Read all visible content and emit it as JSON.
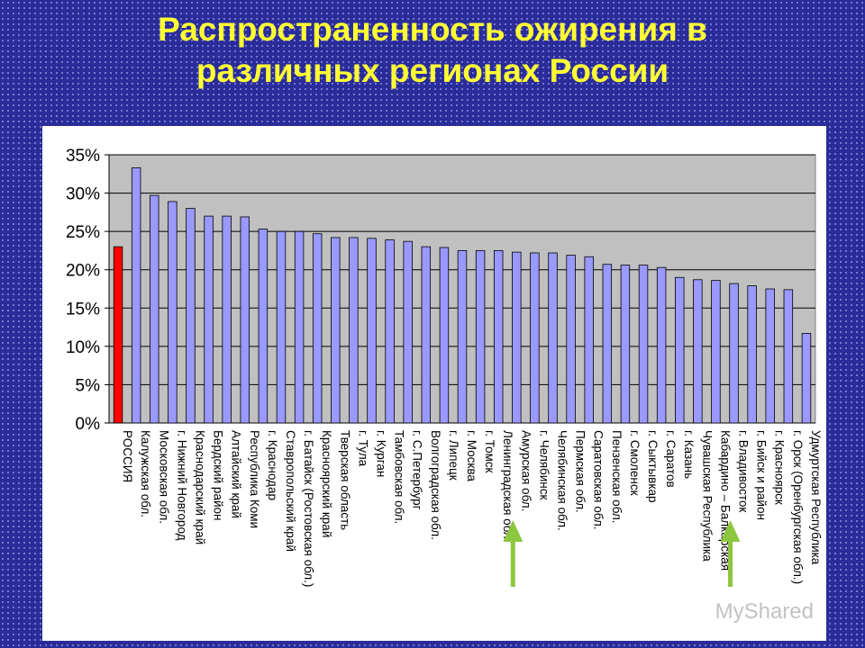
{
  "title_line1": "Распространенность ожирения в",
  "title_line2": "различных регионах России",
  "watermark": "MyShared",
  "colors": {
    "background": "#2a2c9a",
    "title": "#ffff33",
    "plot_area": "#c0c0c0",
    "bar": "#9999ff",
    "bar_highlight": "#ff0000",
    "arrow": "#8dc63f"
  },
  "chart_data": {
    "type": "bar",
    "title": "",
    "xlabel": "",
    "ylabel": "",
    "ylim": [
      0,
      35
    ],
    "y_ticks": [
      "0%",
      "5%",
      "10%",
      "15%",
      "20%",
      "25%",
      "30%",
      "35%"
    ],
    "y_tick_values": [
      0,
      5,
      10,
      15,
      20,
      25,
      30,
      35
    ],
    "grid": true,
    "legend": "none",
    "categories": [
      "РОССИЯ",
      "Калужская обл.",
      "Московская обл.",
      "г. Нижний Новгород",
      "Краснодарский край",
      "Бердский район",
      "Алтайский край",
      "Республика Коми",
      "г. Краснодар",
      "Ставропольский край",
      "г. Батайск (Ростовская обл.)",
      "Красноярский край",
      "Тверская область",
      "г. Тула",
      "г. Курган",
      "Тамбовская обл.",
      "г. С.Петербург",
      "Волгоградская обл.",
      "г. Липецк",
      "г. Москва",
      "г. Томск",
      "Ленинградская обл.",
      "Амурская обл.",
      "г. Челябинск",
      "Челябинская обл.",
      "Пермская обл.",
      "Саратовская обл.",
      "Пензенская обл.",
      "г. Смоленск",
      "г. Сыктывкар",
      "г. Саратов",
      "г. Казань",
      "Чувашская Республика",
      "Кабардино – Балкарская",
      "г. Владивосток",
      "г. Бийск и район",
      "г. Красноярск",
      "г. Орск (Оренбургская обл.)",
      "Удмуртская Республика"
    ],
    "values": [
      23.0,
      33.3,
      29.7,
      28.9,
      28.0,
      27.0,
      27.0,
      26.9,
      25.3,
      25.0,
      25.0,
      24.7,
      24.2,
      24.2,
      24.1,
      23.9,
      23.7,
      23.0,
      22.9,
      22.5,
      22.5,
      22.5,
      22.3,
      22.2,
      22.2,
      21.9,
      21.7,
      20.7,
      20.6,
      20.6,
      20.3,
      19.0,
      18.7,
      18.6,
      18.2,
      17.9,
      17.5,
      17.4,
      11.7
    ],
    "highlight_index": 0,
    "arrow_indices": [
      22,
      34
    ]
  }
}
